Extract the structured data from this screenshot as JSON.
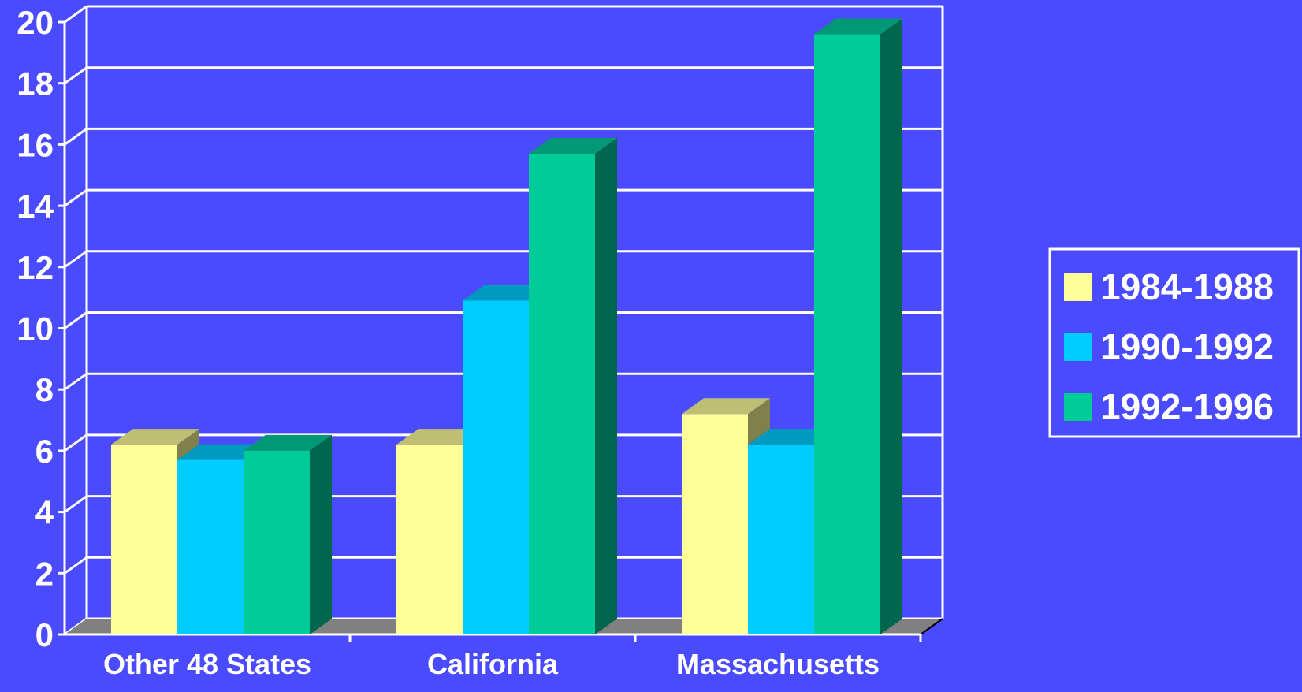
{
  "background_color": "#4a4afe",
  "chart_data": {
    "type": "bar",
    "style": "3d-clustered-column",
    "title": "",
    "xlabel": "",
    "ylabel": "",
    "categories": [
      "Other 48 States",
      "California",
      "Massachusetts"
    ],
    "series": [
      {
        "name": "1984-1988",
        "values": [
          6.2,
          6.2,
          7.2
        ],
        "color": "#ffff99"
      },
      {
        "name": "1990-1992",
        "values": [
          5.7,
          10.9,
          6.2
        ],
        "color": "#00ccff"
      },
      {
        "name": "1992-1996",
        "values": [
          6.0,
          15.7,
          19.6
        ],
        "color": "#00cc99"
      }
    ],
    "ylim": [
      0,
      20
    ],
    "yticks": [
      "0",
      "2",
      "4",
      "6",
      "8",
      "10",
      "12",
      "14",
      "16",
      "18",
      "20"
    ],
    "grid": true,
    "legend_position": "right"
  }
}
